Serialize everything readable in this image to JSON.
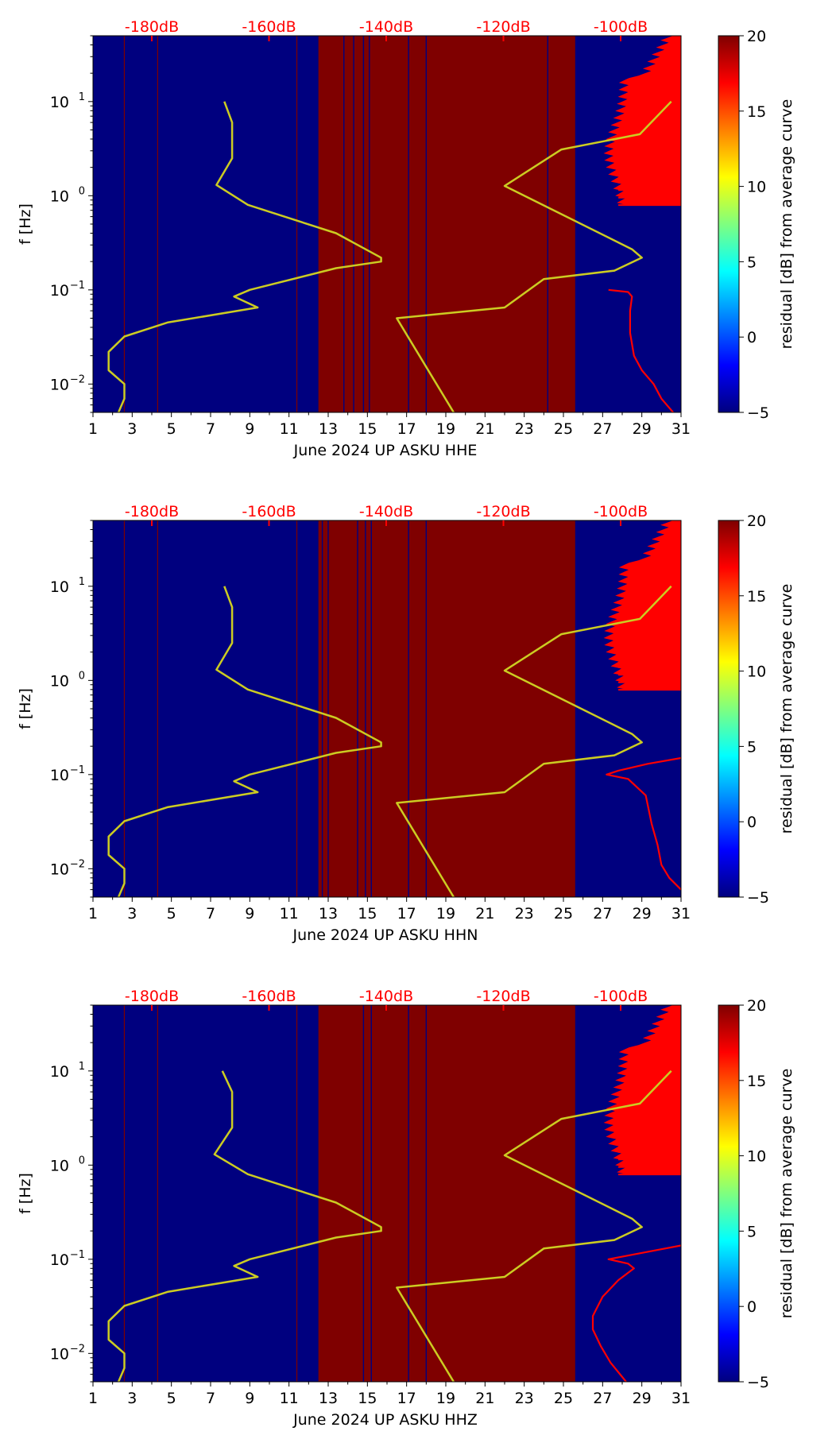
{
  "chart_data": [
    {
      "type": "heatmap",
      "xlabel": "June 2024 UP ASKU  HHE",
      "ylabel": "f [Hz]",
      "x_ticks": [
        "1",
        "3",
        "5",
        "7",
        "9",
        "11",
        "13",
        "15",
        "17",
        "19",
        "21",
        "23",
        "25",
        "27",
        "29",
        "31"
      ],
      "y_ticks": [
        {
          "base": "10",
          "exp": "1",
          "value": 10
        },
        {
          "base": "10",
          "exp": "0",
          "value": 1
        },
        {
          "base": "10",
          "exp": "−1",
          "value": 0.1
        },
        {
          "base": "10",
          "exp": "−2",
          "value": 0.01
        }
      ],
      "xlim": [
        1,
        31
      ],
      "ylim": [
        0.005,
        50
      ],
      "colorbar": {
        "label": "residual [dB] from average curve",
        "ticks": [
          "−5",
          "0",
          "5",
          "10",
          "15",
          "20"
        ],
        "range": [
          -5,
          20
        ]
      },
      "db_scale": [
        "-180dB",
        "-160dB",
        "-140dB",
        "-120dB",
        "-100dB"
      ],
      "high_residual_band": [
        12.5,
        25.6
      ],
      "thin_lines_low": [
        2.6,
        4.3,
        11.4
      ],
      "thin_lines_high": [
        13.8,
        14.3,
        14.8,
        15.1,
        17.1,
        18.0,
        24.2
      ],
      "noise_model_low": [
        [
          10,
          7.7
        ],
        [
          6,
          8.1
        ],
        [
          2.5,
          8.1
        ],
        [
          1.3,
          7.3
        ],
        [
          0.8,
          8.9
        ],
        [
          0.4,
          13.4
        ],
        [
          0.22,
          15.7
        ],
        [
          0.2,
          15.7
        ],
        [
          0.17,
          13.4
        ],
        [
          0.1,
          9
        ],
        [
          0.085,
          8.2
        ],
        [
          0.065,
          9.4
        ],
        [
          0.045,
          4.8
        ],
        [
          0.032,
          2.6
        ],
        [
          0.022,
          1.8
        ],
        [
          0.014,
          1.8
        ],
        [
          0.01,
          2.6
        ],
        [
          0.007,
          2.6
        ],
        [
          0.005,
          2.3
        ]
      ],
      "noise_model_high": [
        [
          10,
          30.5
        ],
        [
          4.5,
          28.9
        ],
        [
          3.1,
          24.9
        ],
        [
          1.27,
          22
        ],
        [
          0.27,
          28.5
        ],
        [
          0.22,
          29
        ],
        [
          0.16,
          27.6
        ],
        [
          0.13,
          24
        ],
        [
          0.065,
          22
        ],
        [
          0.05,
          16.5
        ],
        [
          0.005,
          19.4
        ]
      ],
      "psd_curve": [
        [
          0.1,
          27.3
        ],
        [
          0.095,
          28.3
        ],
        [
          0.085,
          28.5
        ],
        [
          0.06,
          28.4
        ],
        [
          0.035,
          28.4
        ],
        [
          0.02,
          28.6
        ],
        [
          0.014,
          29
        ],
        [
          0.01,
          29.6
        ],
        [
          0.007,
          30
        ],
        [
          0.005,
          30.6
        ]
      ]
    },
    {
      "type": "heatmap",
      "xlabel": "June 2024 UP ASKU  HHN",
      "ylabel": "f [Hz]",
      "x_ticks": [
        "1",
        "3",
        "5",
        "7",
        "9",
        "11",
        "13",
        "15",
        "17",
        "19",
        "21",
        "23",
        "25",
        "27",
        "29",
        "31"
      ],
      "y_ticks": [
        {
          "base": "10",
          "exp": "1",
          "value": 10
        },
        {
          "base": "10",
          "exp": "0",
          "value": 1
        },
        {
          "base": "10",
          "exp": "−1",
          "value": 0.1
        },
        {
          "base": "10",
          "exp": "−2",
          "value": 0.01
        }
      ],
      "xlim": [
        1,
        31
      ],
      "ylim": [
        0.005,
        50
      ],
      "colorbar": {
        "label": "residual [dB] from average curve",
        "ticks": [
          "−5",
          "0",
          "5",
          "10",
          "15",
          "20"
        ],
        "range": [
          -5,
          20
        ]
      },
      "db_scale": [
        "-180dB",
        "-160dB",
        "-140dB",
        "-120dB",
        "-100dB"
      ],
      "high_residual_band": [
        12.5,
        25.6
      ],
      "thin_lines_low": [
        2.6,
        4.3,
        11.4
      ],
      "thin_lines_high": [
        12.7,
        13.0,
        14.5,
        14.9,
        15.2,
        17.1,
        18.0
      ],
      "noise_model_low": [
        [
          10,
          7.7
        ],
        [
          6,
          8.1
        ],
        [
          2.5,
          8.1
        ],
        [
          1.3,
          7.3
        ],
        [
          0.8,
          8.9
        ],
        [
          0.4,
          13.4
        ],
        [
          0.22,
          15.7
        ],
        [
          0.2,
          15.7
        ],
        [
          0.17,
          13.4
        ],
        [
          0.1,
          9
        ],
        [
          0.085,
          8.2
        ],
        [
          0.065,
          9.4
        ],
        [
          0.045,
          4.8
        ],
        [
          0.032,
          2.6
        ],
        [
          0.022,
          1.8
        ],
        [
          0.014,
          1.8
        ],
        [
          0.01,
          2.6
        ],
        [
          0.007,
          2.6
        ],
        [
          0.005,
          2.3
        ]
      ],
      "noise_model_high": [
        [
          10,
          30.5
        ],
        [
          4.5,
          28.9
        ],
        [
          3.1,
          24.9
        ],
        [
          1.27,
          22
        ],
        [
          0.27,
          28.5
        ],
        [
          0.22,
          29
        ],
        [
          0.16,
          27.6
        ],
        [
          0.13,
          24
        ],
        [
          0.065,
          22
        ],
        [
          0.05,
          16.5
        ],
        [
          0.005,
          19.4
        ]
      ],
      "psd_curve": [
        [
          0.15,
          31
        ],
        [
          0.13,
          29.3
        ],
        [
          0.11,
          27.8
        ],
        [
          0.1,
          27.2
        ],
        [
          0.09,
          28.3
        ],
        [
          0.06,
          29.2
        ],
        [
          0.03,
          29.5
        ],
        [
          0.018,
          29.8
        ],
        [
          0.011,
          30
        ],
        [
          0.008,
          30.4
        ],
        [
          0.006,
          31
        ]
      ]
    },
    {
      "type": "heatmap",
      "xlabel": "June 2024 UP ASKU  HHZ",
      "ylabel": "f [Hz]",
      "x_ticks": [
        "1",
        "3",
        "5",
        "7",
        "9",
        "11",
        "13",
        "15",
        "17",
        "19",
        "21",
        "23",
        "25",
        "27",
        "29",
        "31"
      ],
      "y_ticks": [
        {
          "base": "10",
          "exp": "1",
          "value": 10
        },
        {
          "base": "10",
          "exp": "0",
          "value": 1
        },
        {
          "base": "10",
          "exp": "−1",
          "value": 0.1
        },
        {
          "base": "10",
          "exp": "−2",
          "value": 0.01
        }
      ],
      "xlim": [
        1,
        31
      ],
      "ylim": [
        0.005,
        50
      ],
      "colorbar": {
        "label": "residual [dB] from average curve",
        "ticks": [
          "−5",
          "0",
          "5",
          "10",
          "15",
          "20"
        ],
        "range": [
          -5,
          20
        ]
      },
      "db_scale": [
        "-180dB",
        "-160dB",
        "-140dB",
        "-120dB",
        "-100dB"
      ],
      "high_residual_band": [
        12.5,
        25.6
      ],
      "thin_lines_low": [
        2.6,
        4.3,
        11.4
      ],
      "thin_lines_high": [
        14.8,
        15.2,
        17.1,
        18.0
      ],
      "noise_model_low": [
        [
          10,
          7.6
        ],
        [
          6,
          8.1
        ],
        [
          2.5,
          8.1
        ],
        [
          1.3,
          7.2
        ],
        [
          0.8,
          8.9
        ],
        [
          0.4,
          13.4
        ],
        [
          0.22,
          15.7
        ],
        [
          0.2,
          15.7
        ],
        [
          0.17,
          13.4
        ],
        [
          0.1,
          9
        ],
        [
          0.085,
          8.2
        ],
        [
          0.065,
          9.4
        ],
        [
          0.045,
          4.8
        ],
        [
          0.032,
          2.6
        ],
        [
          0.022,
          1.8
        ],
        [
          0.014,
          1.8
        ],
        [
          0.01,
          2.6
        ],
        [
          0.007,
          2.6
        ],
        [
          0.005,
          2.3
        ]
      ],
      "noise_model_high": [
        [
          10,
          30.5
        ],
        [
          4.5,
          28.9
        ],
        [
          3.1,
          24.9
        ],
        [
          1.27,
          22
        ],
        [
          0.27,
          28.5
        ],
        [
          0.22,
          29
        ],
        [
          0.16,
          27.6
        ],
        [
          0.13,
          24
        ],
        [
          0.065,
          22
        ],
        [
          0.05,
          16.5
        ],
        [
          0.005,
          19.4
        ]
      ],
      "psd_curve": [
        [
          0.14,
          31
        ],
        [
          0.12,
          29.3
        ],
        [
          0.1,
          27.3
        ],
        [
          0.09,
          28.3
        ],
        [
          0.08,
          28.6
        ],
        [
          0.06,
          27.8
        ],
        [
          0.04,
          27
        ],
        [
          0.025,
          26.5
        ],
        [
          0.018,
          26.5
        ],
        [
          0.012,
          26.9
        ],
        [
          0.008,
          27.4
        ],
        [
          0.005,
          28.2
        ]
      ]
    }
  ]
}
